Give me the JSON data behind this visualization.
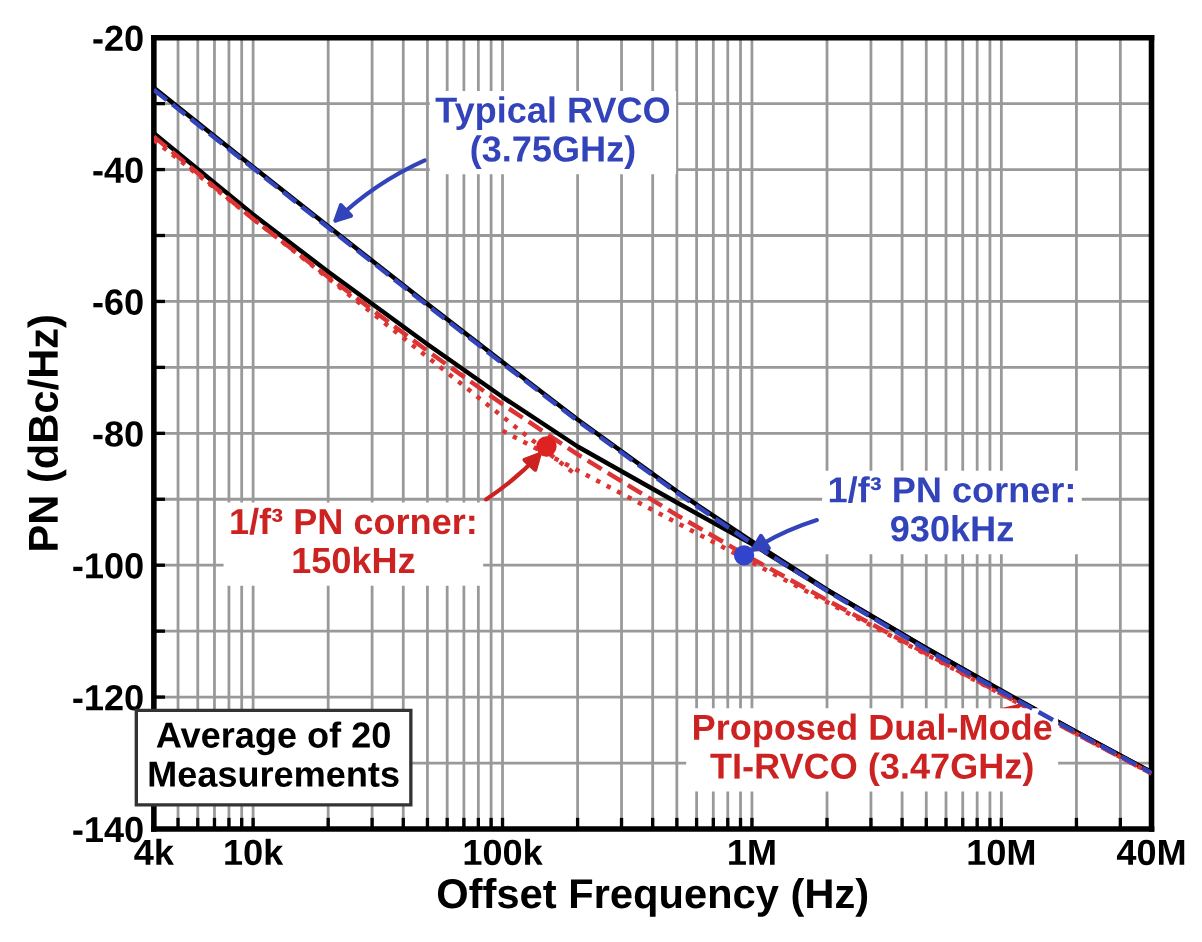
{
  "chart_data": {
    "type": "line",
    "xlabel": "Offset Frequency (Hz)",
    "ylabel": "PN (dBc/Hz)",
    "log": "x",
    "grid": true,
    "legend": false,
    "xlim": [
      4000,
      40000000
    ],
    "ylim": [
      -140,
      -20
    ],
    "xticks": [
      {
        "value": 4000,
        "label": "4k"
      },
      {
        "value": 5000,
        "label": null
      },
      {
        "value": 6000,
        "label": null
      },
      {
        "value": 7000,
        "label": null
      },
      {
        "value": 8000,
        "label": null
      },
      {
        "value": 9000,
        "label": null
      },
      {
        "value": 10000,
        "label": "10k"
      },
      {
        "value": 20000,
        "label": null
      },
      {
        "value": 30000,
        "label": null
      },
      {
        "value": 40000,
        "label": null
      },
      {
        "value": 50000,
        "label": null
      },
      {
        "value": 60000,
        "label": null
      },
      {
        "value": 70000,
        "label": null
      },
      {
        "value": 80000,
        "label": null
      },
      {
        "value": 90000,
        "label": null
      },
      {
        "value": 100000,
        "label": "100k"
      },
      {
        "value": 200000,
        "label": null
      },
      {
        "value": 300000,
        "label": null
      },
      {
        "value": 400000,
        "label": null
      },
      {
        "value": 500000,
        "label": null
      },
      {
        "value": 600000,
        "label": null
      },
      {
        "value": 700000,
        "label": null
      },
      {
        "value": 800000,
        "label": null
      },
      {
        "value": 900000,
        "label": null
      },
      {
        "value": 1000000,
        "label": "1M"
      },
      {
        "value": 2000000,
        "label": null
      },
      {
        "value": 3000000,
        "label": null
      },
      {
        "value": 4000000,
        "label": null
      },
      {
        "value": 5000000,
        "label": null
      },
      {
        "value": 6000000,
        "label": null
      },
      {
        "value": 7000000,
        "label": null
      },
      {
        "value": 8000000,
        "label": null
      },
      {
        "value": 9000000,
        "label": null
      },
      {
        "value": 10000000,
        "label": "10M"
      },
      {
        "value": 20000000,
        "label": null
      },
      {
        "value": 30000000,
        "label": null
      },
      {
        "value": 40000000,
        "label": "40M"
      }
    ],
    "yticks": [
      -140,
      {
        "value": -130,
        "label": null
      },
      -120,
      {
        "value": -110,
        "label": null
      },
      -100,
      {
        "value": -90,
        "label": null
      },
      -80,
      {
        "value": -70,
        "label": null
      },
      -60,
      {
        "value": -50,
        "label": null
      },
      -40,
      {
        "value": -30,
        "label": null
      },
      -20
    ],
    "x": [
      4000,
      10000,
      20000,
      50000,
      100000,
      200000,
      500000,
      1000000,
      2000000,
      5000000,
      10000000,
      20000000,
      40000000
    ],
    "series": [
      {
        "color": "#000000",
        "line_style": "solid",
        "values": [
          -27.6,
          -39.6,
          -48.6,
          -60.4,
          -69.2,
          -77.9,
          -88.8,
          -96.4,
          -103.7,
          -112.6,
          -119.1,
          -125.3,
          -131.4
        ]
      },
      {
        "color": "#3344bb",
        "line_style": "dashed",
        "values": [
          -27.9,
          -39.8,
          -48.8,
          -60.6,
          -69.4,
          -78.1,
          -89.0,
          -96.7,
          -103.9,
          -112.8,
          -119.2,
          -125.4,
          -131.5
        ]
      },
      {
        "color": "#000000",
        "line_style": "solid",
        "values": [
          -34.5,
          -46.8,
          -55.5,
          -66.5,
          -74.5,
          -82.0,
          -90.5,
          -96.8,
          -103.8,
          -112.6,
          -119.0,
          -125.3,
          -131.4
        ]
      },
      {
        "color": "#dd3333",
        "line_style": "dashed",
        "values": [
          -35.0,
          -47.5,
          -56.3,
          -67.5,
          -75.6,
          -83.2,
          -92.4,
          -99.0,
          -105.3,
          -113.4,
          -119.5,
          -125.6,
          -131.6
        ]
      },
      {
        "color": "#dd3333",
        "line_style": "dotted",
        "x": [
          4000,
          200000
        ],
        "values": [
          -35.5,
          -86.5
        ]
      },
      {
        "color": "#dd3333",
        "line_style": "dotted",
        "x": [
          100000,
          40000000
        ],
        "values": [
          -79.6,
          -131.6
        ]
      },
      {
        "type": "scatter",
        "color": "#dd2222",
        "marker": "circle",
        "x": [
          150000
        ],
        "values": [
          -82.0
        ]
      },
      {
        "type": "scatter",
        "color": "#3344cc",
        "marker": "circle",
        "x": [
          930000
        ],
        "values": [
          -98.5
        ]
      }
    ],
    "annotations": [
      {
        "text": "Typical RVCO\n(3.75GHz)",
        "x": 20000,
        "y": -48.8
      },
      {
        "text": "1/f³ PN corner:\n150kHz",
        "x": 150000,
        "y": -82
      },
      {
        "text": "1/f³ PN corner:\n930kHz",
        "x": 930000,
        "y": -98.5
      },
      {
        "text": "Proposed Dual-Mode\nTI-RVCO (3.47GHz)",
        "x": 12000000,
        "y": -121
      },
      "Average of 20\nMeasurements"
    ]
  }
}
